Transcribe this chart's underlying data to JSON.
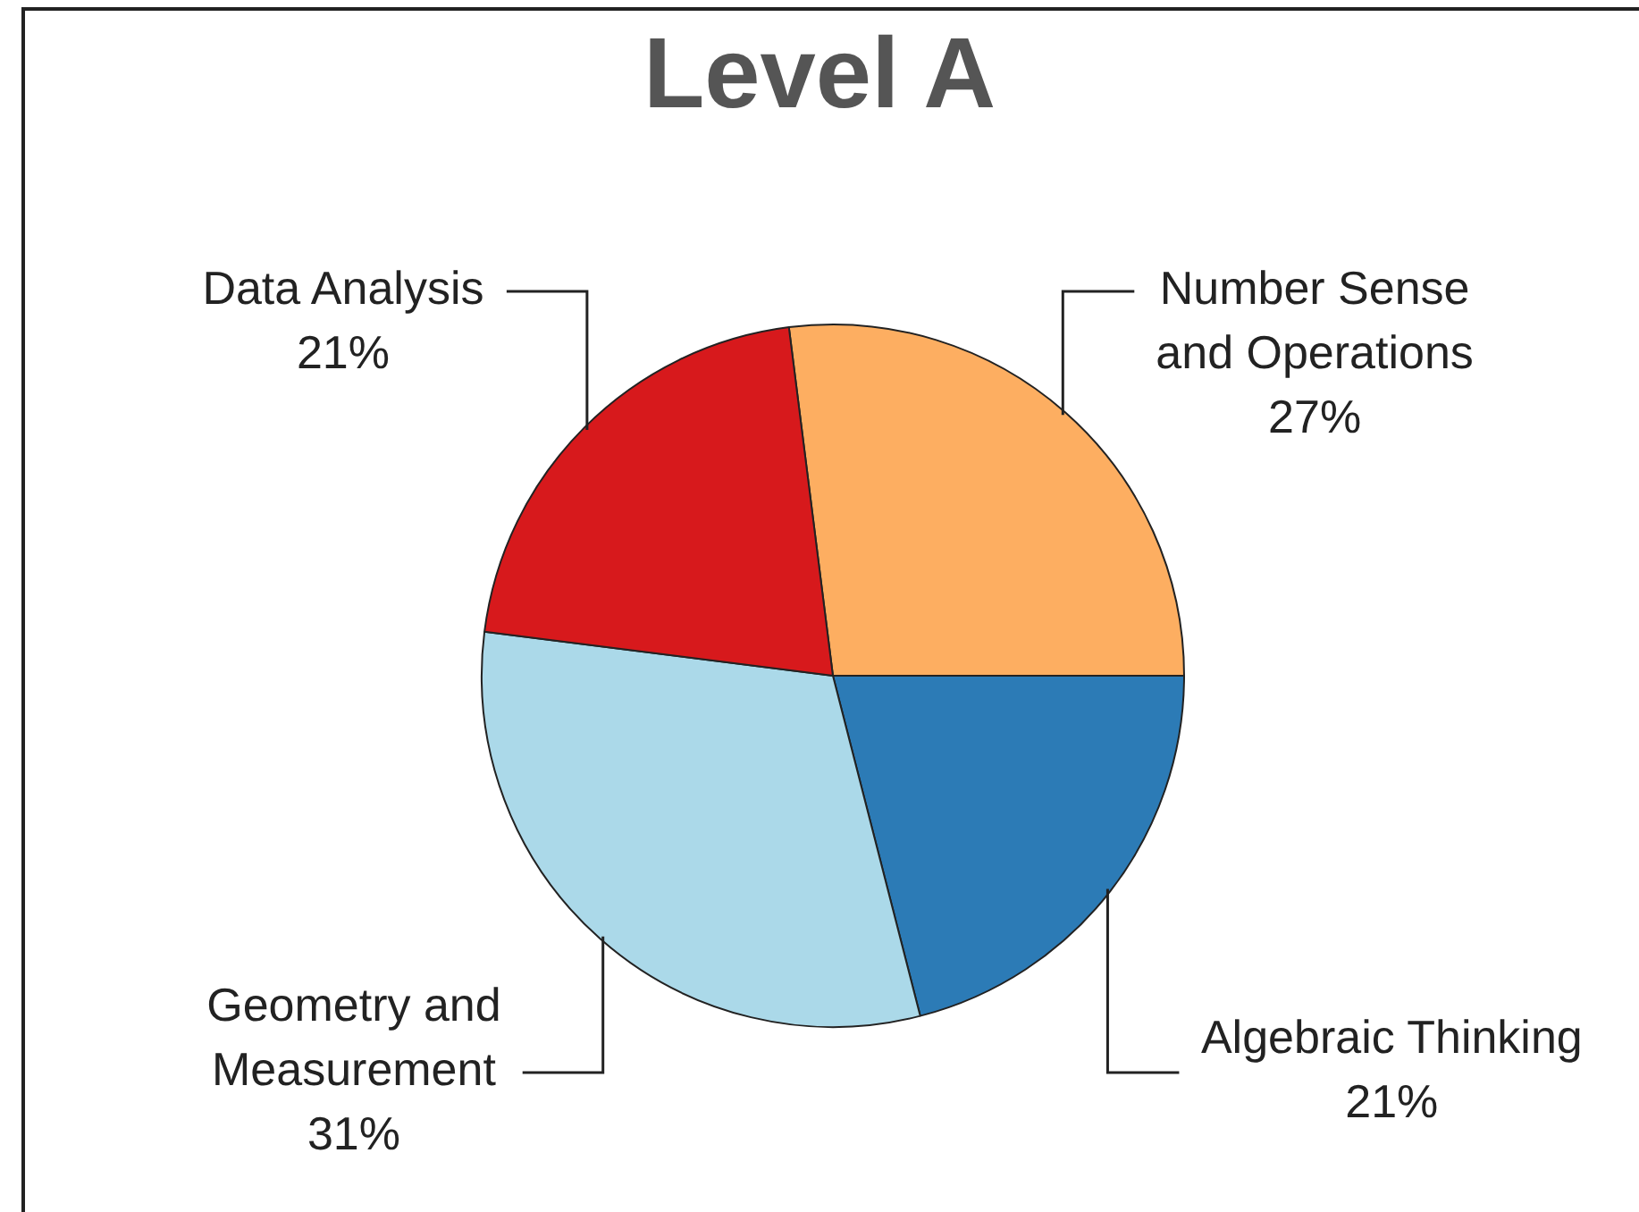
{
  "chart_data": {
    "type": "pie",
    "title": "Level A",
    "categories": [
      "Number Sense and Operations",
      "Algebraic Thinking",
      "Geometry and Measurement",
      "Data Analysis"
    ],
    "values": [
      27,
      21,
      31,
      21
    ],
    "value_labels": [
      "27%",
      "21%",
      "31%",
      "21%"
    ],
    "colors": [
      "#fdae61",
      "#2c7bb6",
      "#abd9e9",
      "#d7191c"
    ],
    "legend": false
  }
}
